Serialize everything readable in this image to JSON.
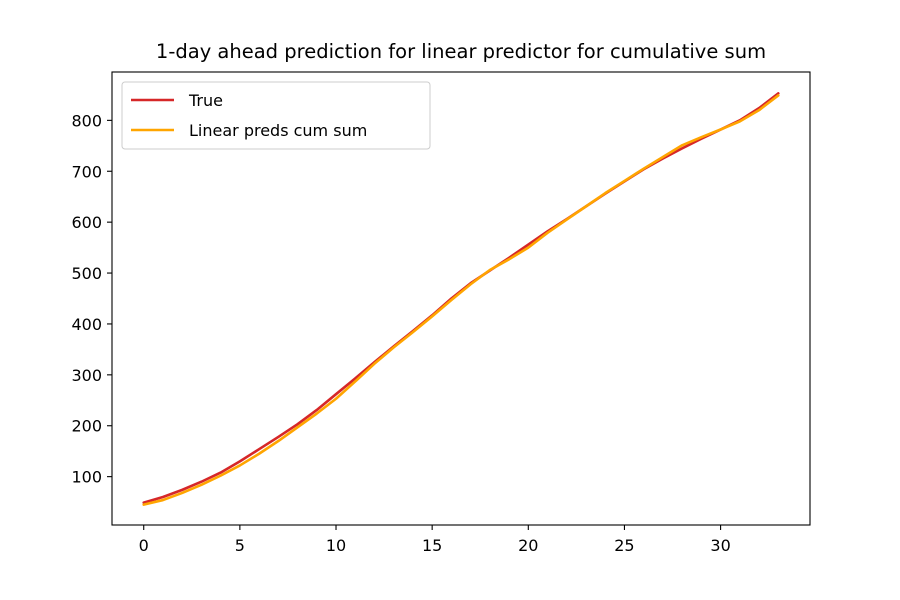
{
  "chart_data": {
    "type": "line",
    "title": "1-day ahead prediction for linear predictor for cumulative sum",
    "xlabel": "",
    "ylabel": "",
    "xlim": [
      -1.65,
      34.65
    ],
    "ylim": [
      5,
      895
    ],
    "xticks": [
      0,
      5,
      10,
      15,
      20,
      25,
      30
    ],
    "yticks": [
      100,
      200,
      300,
      400,
      500,
      600,
      700,
      800
    ],
    "grid": false,
    "legend_position": "upper-left",
    "x": [
      0,
      1,
      2,
      3,
      4,
      5,
      6,
      7,
      8,
      9,
      10,
      11,
      12,
      13,
      14,
      15,
      16,
      17,
      18,
      19,
      20,
      21,
      22,
      23,
      24,
      25,
      26,
      27,
      28,
      29,
      30,
      31,
      32,
      33
    ],
    "series": [
      {
        "name": "True",
        "color": "#d62728",
        "values": [
          49,
          60,
          74,
          90,
          108,
          130,
          154,
          178,
          203,
          231,
          262,
          293,
          325,
          356,
          386,
          417,
          450,
          480,
          505,
          530,
          556,
          582,
          606,
          631,
          656,
          680,
          704,
          725,
          745,
          764,
          782,
          800,
          824,
          853
        ]
      },
      {
        "name": "Linear preds cum sum",
        "color": "#ffa500",
        "values": [
          45,
          54,
          68,
          84,
          102,
          122,
          145,
          170,
          197,
          224,
          253,
          287,
          322,
          354,
          384,
          415,
          447,
          478,
          506,
          527,
          550,
          579,
          605,
          631,
          657,
          681,
          705,
          728,
          751,
          767,
          782,
          798,
          820,
          849
        ]
      }
    ]
  }
}
